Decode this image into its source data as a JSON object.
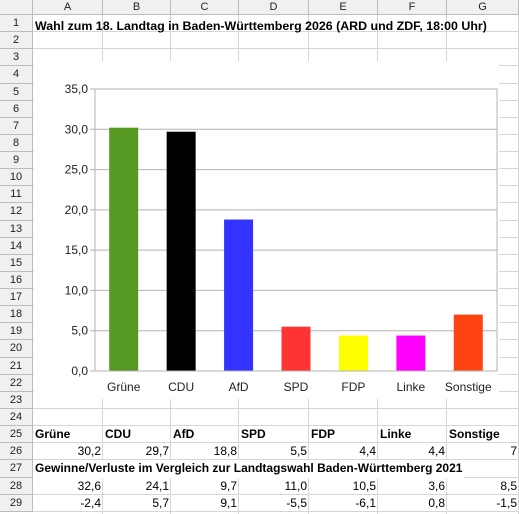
{
  "sheet": {
    "columns": [
      "A",
      "B",
      "C",
      "D",
      "E",
      "F",
      "G"
    ],
    "rows": [
      "1",
      "2",
      "3",
      "4",
      "5",
      "6",
      "7",
      "8",
      "9",
      "10",
      "11",
      "12",
      "13",
      "14",
      "15",
      "16",
      "17",
      "18",
      "19",
      "20",
      "21",
      "22",
      "23",
      "24",
      "25",
      "26",
      "27",
      "28",
      "29"
    ],
    "title": "Wahl zum 18. Landtag in Baden-Württemberg 2026 (ARD und ZDF, 18:00 Uhr)",
    "header_row": [
      "Grüne",
      "CDU",
      "AfD",
      "SPD",
      "FDP",
      "Linke",
      "Sonstige"
    ],
    "results_row": [
      "30,2",
      "29,7",
      "18,8",
      "5,5",
      "4,4",
      "4,4",
      "7"
    ],
    "comparison_title": "Gewinne/Verluste im Vergleich zur Landtagswahl Baden-Württemberg 2021",
    "row_2021": [
      "32,6",
      "24,1",
      "9,7",
      "11,0",
      "10,5",
      "3,6",
      "8,5"
    ],
    "row_diff": [
      "-2,4",
      "5,7",
      "9,1",
      "-5,5",
      "-6,1",
      "0,8",
      "-1,5"
    ]
  },
  "chart_data": {
    "type": "bar",
    "categories": [
      "Grüne",
      "CDU",
      "AfD",
      "SPD",
      "FDP",
      "Linke",
      "Sonstige"
    ],
    "values": [
      30.2,
      29.7,
      18.8,
      5.5,
      4.4,
      4.4,
      7.0
    ],
    "colors": [
      "#559922",
      "#000000",
      "#3333ff",
      "#ff3333",
      "#ffff00",
      "#ff00ff",
      "#ff4411"
    ],
    "y_ticks": [
      "0,0",
      "5,0",
      "10,0",
      "15,0",
      "20,0",
      "25,0",
      "30,0",
      "35,0"
    ],
    "ylim": [
      0,
      35
    ],
    "grid": true,
    "legend": "none",
    "title": "",
    "xlabel": "",
    "ylabel": ""
  }
}
